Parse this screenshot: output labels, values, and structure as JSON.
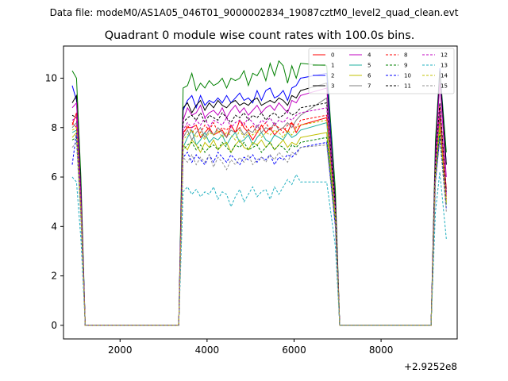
{
  "figure": {
    "suptitle": "Data file: modeM0/AS1A05_046T01_9000002834_19087cztM0_level2_quad_clean.evt",
    "title": "Quadrant 0 module wise count rates with 100.0s bins.",
    "x_offset_label": "+2.9252e8"
  },
  "chart_data": {
    "type": "line",
    "title": "Quadrant 0 module wise count rates with 100.0s bins.",
    "xlabel": "",
    "ylabel": "",
    "x_offset": 292520000,
    "xlim": [
      700,
      9750
    ],
    "ylim": [
      -0.55,
      11.3
    ],
    "xticks": [
      2000,
      4000,
      6000,
      8000
    ],
    "xtick_labels": [
      "2000",
      "4000",
      "6000",
      "8000"
    ],
    "yticks": [
      0,
      2,
      4,
      6,
      8,
      10
    ],
    "ytick_labels": [
      "0",
      "2",
      "4",
      "6",
      "8",
      "10"
    ],
    "grid": false,
    "legend_position": "top-right",
    "series": [
      {
        "name": "0",
        "color": "#ff0000",
        "dash": "solid",
        "values": [
          8.1,
          8.6,
          5.0,
          0,
          0,
          0,
          7.8,
          8.0,
          8.0,
          8.1,
          7.6,
          7.8,
          8.0,
          7.7,
          7.8,
          7.9,
          7.6,
          8.1,
          7.8,
          8.3,
          8.0,
          7.8,
          7.5,
          7.8,
          8.1,
          7.8,
          8.0,
          7.7,
          7.9,
          8.0,
          7.8,
          8.2,
          7.8,
          8.1,
          8.4,
          4.5,
          0,
          0,
          0,
          6.5,
          8.9,
          5.5
        ]
      },
      {
        "name": "1",
        "color": "#008000",
        "dash": "solid",
        "values": [
          10.3,
          10.0,
          6.0,
          0,
          0,
          0,
          9.6,
          9.7,
          10.2,
          9.5,
          9.8,
          9.6,
          9.9,
          9.7,
          9.8,
          10.0,
          9.6,
          10.0,
          9.9,
          10.0,
          10.3,
          9.7,
          10.2,
          10.1,
          10.4,
          9.9,
          10.6,
          10.1,
          10.7,
          10.5,
          9.8,
          10.5,
          10.0,
          10.6,
          10.5,
          5.5,
          0,
          0,
          0,
          7.5,
          10.4,
          7.0
        ]
      },
      {
        "name": "2",
        "color": "#0000ff",
        "dash": "solid",
        "values": [
          9.7,
          9.1,
          5.5,
          0,
          0,
          0,
          8.7,
          9.1,
          9.3,
          8.8,
          9.3,
          8.9,
          9.1,
          9.0,
          9.2,
          9.0,
          9.3,
          9.0,
          9.2,
          9.4,
          9.1,
          9.2,
          9.0,
          9.5,
          9.1,
          9.5,
          9.6,
          9.2,
          9.3,
          9.5,
          9.1,
          9.6,
          9.7,
          10.0,
          10.2,
          5.0,
          0,
          0,
          0,
          7.0,
          10.4,
          6.5
        ]
      },
      {
        "name": "3",
        "color": "#000000",
        "dash": "solid",
        "values": [
          9.0,
          9.3,
          5.5,
          0,
          0,
          0,
          8.8,
          9.0,
          8.6,
          8.9,
          9.1,
          8.7,
          9.0,
          8.8,
          9.1,
          8.9,
          8.8,
          9.0,
          9.1,
          8.9,
          9.0,
          8.9,
          9.1,
          9.2,
          8.9,
          9.0,
          9.1,
          9.0,
          9.2,
          9.1,
          8.9,
          9.3,
          9.2,
          9.5,
          9.8,
          5.0,
          0,
          0,
          0,
          7.0,
          10.3,
          6.5
        ]
      },
      {
        "name": "4",
        "color": "#c000c0",
        "dash": "solid",
        "values": [
          8.8,
          9.0,
          5.2,
          0,
          0,
          0,
          8.3,
          8.8,
          8.5,
          8.6,
          8.9,
          8.4,
          8.6,
          8.7,
          8.5,
          8.8,
          8.4,
          8.7,
          8.9,
          8.6,
          8.8,
          8.5,
          8.7,
          8.9,
          8.6,
          8.8,
          8.9,
          8.7,
          9.0,
          8.8,
          8.6,
          9.1,
          9.0,
          9.3,
          9.6,
          4.8,
          0,
          0,
          0,
          6.8,
          9.8,
          6.0
        ]
      },
      {
        "name": "5",
        "color": "#20b0a0",
        "dash": "solid",
        "values": [
          7.8,
          7.9,
          4.7,
          0,
          0,
          0,
          7.2,
          7.6,
          7.9,
          7.3,
          7.5,
          7.8,
          7.4,
          7.6,
          7.5,
          7.7,
          7.3,
          7.6,
          7.8,
          7.4,
          7.5,
          7.7,
          7.3,
          7.6,
          7.8,
          7.5,
          7.4,
          7.7,
          7.6,
          7.5,
          7.8,
          7.6,
          7.7,
          7.9,
          8.2,
          4.3,
          0,
          0,
          0,
          6.2,
          8.3,
          5.0
        ]
      },
      {
        "name": "6",
        "color": "#c0c000",
        "dash": "solid",
        "values": [
          7.6,
          7.8,
          4.6,
          0,
          0,
          0,
          7.3,
          7.1,
          7.5,
          7.3,
          7.0,
          7.4,
          7.2,
          7.5,
          7.1,
          7.3,
          7.4,
          7.0,
          7.3,
          7.5,
          7.2,
          7.1,
          7.4,
          7.3,
          7.5,
          7.2,
          7.4,
          7.1,
          7.3,
          7.5,
          7.2,
          7.4,
          7.3,
          7.6,
          7.8,
          4.2,
          0,
          0,
          0,
          6.0,
          8.0,
          4.9
        ]
      },
      {
        "name": "7",
        "color": "#808080",
        "dash": "solid",
        "values": [
          8.0,
          8.2,
          4.8,
          0,
          0,
          0,
          7.6,
          7.9,
          7.5,
          7.8,
          8.0,
          7.6,
          7.9,
          7.7,
          8.0,
          7.8,
          7.6,
          7.9,
          7.8,
          8.0,
          7.7,
          7.9,
          7.8,
          8.1,
          7.8,
          8.0,
          7.9,
          8.2,
          7.9,
          8.0,
          8.2,
          8.0,
          8.3,
          8.5,
          9.2,
          4.7,
          0,
          0,
          0,
          6.5,
          8.6,
          5.2
        ]
      },
      {
        "name": "8",
        "color": "#ff0000",
        "dash": "dashed",
        "values": [
          8.2,
          8.0,
          4.8,
          0,
          0,
          0,
          7.7,
          8.1,
          7.8,
          8.0,
          7.8,
          8.1,
          7.9,
          8.2,
          7.8,
          8.0,
          7.9,
          8.1,
          7.8,
          8.0,
          8.2,
          7.9,
          8.1,
          7.8,
          8.0,
          8.2,
          7.9,
          8.1,
          8.0,
          7.8,
          8.1,
          8.2,
          8.0,
          8.3,
          8.5,
          4.6,
          0,
          0,
          0,
          6.4,
          8.4,
          5.1
        ]
      },
      {
        "name": "9",
        "color": "#008000",
        "dash": "dashed",
        "values": [
          7.5,
          7.6,
          4.5,
          0,
          0,
          0,
          7.1,
          7.3,
          7.4,
          7.1,
          7.3,
          7.0,
          7.2,
          7.3,
          7.1,
          7.4,
          7.2,
          7.0,
          7.3,
          7.2,
          7.4,
          7.1,
          7.2,
          7.3,
          7.0,
          7.2,
          7.4,
          7.1,
          7.3,
          7.2,
          7.0,
          7.3,
          7.2,
          7.4,
          7.6,
          4.1,
          0,
          0,
          0,
          6.0,
          7.8,
          4.8
        ]
      },
      {
        "name": "10",
        "color": "#0000ff",
        "dash": "dashed",
        "values": [
          6.5,
          7.8,
          4.4,
          0,
          0,
          0,
          6.8,
          7.0,
          6.6,
          6.9,
          6.7,
          6.5,
          6.9,
          6.6,
          7.0,
          6.8,
          6.6,
          6.9,
          6.7,
          6.5,
          6.8,
          6.7,
          6.9,
          6.6,
          6.8,
          6.7,
          6.9,
          6.5,
          6.8,
          6.7,
          6.9,
          6.8,
          7.0,
          7.2,
          7.4,
          4.0,
          0,
          0,
          0,
          5.8,
          7.6,
          4.7
        ]
      },
      {
        "name": "11",
        "color": "#000000",
        "dash": "dashed",
        "values": [
          8.5,
          8.4,
          5.0,
          0,
          0,
          0,
          8.2,
          8.4,
          8.5,
          8.3,
          8.6,
          8.2,
          8.5,
          8.4,
          8.3,
          8.6,
          8.4,
          8.2,
          8.5,
          8.4,
          8.6,
          8.3,
          8.5,
          8.4,
          8.6,
          8.3,
          8.5,
          8.6,
          8.4,
          8.5,
          8.7,
          8.5,
          8.6,
          8.8,
          9.0,
          4.8,
          0,
          0,
          0,
          6.6,
          9.0,
          5.4
        ]
      },
      {
        "name": "12",
        "color": "#c000c0",
        "dash": "dashed",
        "values": [
          8.3,
          8.4,
          4.9,
          0,
          0,
          0,
          7.9,
          8.2,
          8.0,
          8.3,
          8.1,
          8.4,
          8.0,
          8.3,
          8.2,
          8.1,
          8.4,
          8.0,
          8.2,
          8.3,
          8.1,
          8.4,
          8.2,
          8.0,
          8.3,
          8.2,
          8.4,
          8.1,
          8.3,
          8.2,
          8.4,
          8.3,
          8.5,
          8.6,
          8.8,
          4.7,
          0,
          0,
          0,
          6.5,
          8.7,
          5.3
        ]
      },
      {
        "name": "13",
        "color": "#20b0c0",
        "dash": "dashed",
        "values": [
          6.0,
          5.8,
          3.5,
          0,
          0,
          0,
          5.4,
          5.6,
          5.3,
          5.5,
          5.2,
          5.4,
          5.3,
          5.6,
          5.1,
          5.4,
          5.3,
          4.8,
          5.2,
          5.5,
          5.0,
          5.3,
          5.6,
          5.2,
          5.4,
          5.5,
          5.1,
          5.6,
          5.3,
          5.6,
          5.9,
          5.7,
          6.1,
          5.8,
          5.8,
          3.2,
          0,
          0,
          0,
          4.6,
          6.2,
          3.5
        ]
      },
      {
        "name": "14",
        "color": "#c0c000",
        "dash": "dashed",
        "values": [
          7.9,
          8.0,
          4.7,
          0,
          0,
          0,
          7.5,
          7.7,
          7.9,
          7.6,
          7.8,
          7.5,
          7.8,
          7.7,
          7.9,
          7.6,
          7.8,
          7.7,
          7.5,
          7.9,
          7.6,
          7.8,
          7.7,
          7.9,
          7.6,
          7.8,
          7.7,
          7.9,
          7.8,
          7.6,
          7.9,
          7.7,
          8.0,
          8.1,
          8.3,
          4.4,
          0,
          0,
          0,
          6.2,
          8.2,
          5.0
        ]
      },
      {
        "name": "15",
        "color": "#909090",
        "dash": "dashed",
        "values": [
          7.2,
          7.4,
          4.3,
          0,
          0,
          0,
          6.8,
          6.6,
          6.9,
          6.5,
          6.8,
          6.6,
          6.9,
          6.4,
          6.8,
          6.6,
          6.3,
          6.7,
          6.5,
          6.8,
          6.6,
          6.9,
          6.5,
          6.7,
          6.8,
          6.6,
          6.9,
          6.7,
          7.0,
          6.8,
          6.6,
          7.0,
          6.9,
          7.2,
          7.3,
          4.0,
          0,
          0,
          0,
          5.8,
          7.5,
          4.6
        ]
      }
    ],
    "x": [
      900,
      1000,
      1100,
      1200,
      3250,
      3350,
      3450,
      3550,
      3650,
      3750,
      3850,
      3950,
      4050,
      4150,
      4250,
      4350,
      4450,
      4550,
      4650,
      4750,
      4850,
      4950,
      5050,
      5150,
      5250,
      5350,
      5450,
      5550,
      5650,
      5750,
      5850,
      5950,
      6050,
      6150,
      6750,
      6950,
      7050,
      7150,
      9150,
      9250,
      9350,
      9500
    ]
  }
}
